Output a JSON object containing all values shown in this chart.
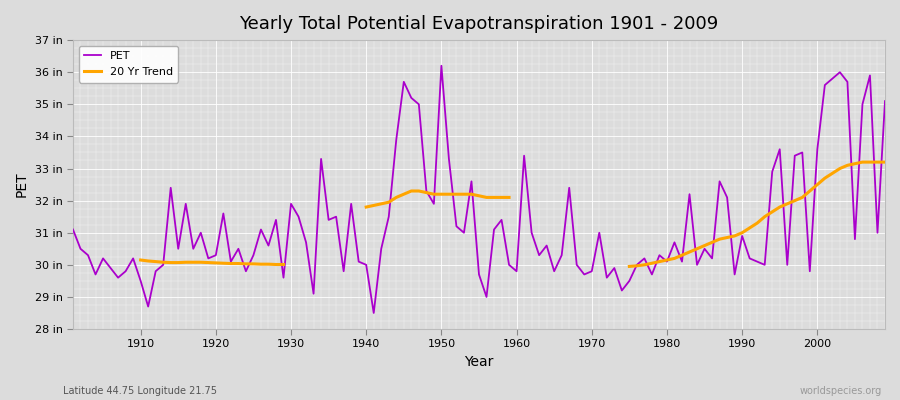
{
  "title": "Yearly Total Potential Evapotranspiration 1901 - 2009",
  "xlabel": "Year",
  "ylabel": "PET",
  "bottom_left_label": "Latitude 44.75 Longitude 21.75",
  "bottom_right_label": "worldspecies.org",
  "pet_color": "#AA00CC",
  "trend_color": "#FFA500",
  "bg_color": "#DCDCDC",
  "ylim_min": 28,
  "ylim_max": 37,
  "ytick_values": [
    28,
    29,
    30,
    31,
    32,
    33,
    34,
    35,
    36,
    37
  ],
  "ytick_labels": [
    "28 in",
    "29 in",
    "30 in",
    "31 in",
    "32 in",
    "33 in",
    "34 in",
    "35 in",
    "36 in",
    "37 in"
  ],
  "xtick_values": [
    1910,
    1920,
    1930,
    1940,
    1950,
    1960,
    1970,
    1980,
    1990,
    2000
  ],
  "years": [
    1901,
    1902,
    1903,
    1904,
    1905,
    1906,
    1907,
    1908,
    1909,
    1910,
    1911,
    1912,
    1913,
    1914,
    1915,
    1916,
    1917,
    1918,
    1919,
    1920,
    1921,
    1922,
    1923,
    1924,
    1925,
    1926,
    1927,
    1928,
    1929,
    1930,
    1931,
    1932,
    1933,
    1934,
    1935,
    1936,
    1937,
    1938,
    1939,
    1940,
    1941,
    1942,
    1943,
    1944,
    1945,
    1946,
    1947,
    1948,
    1949,
    1950,
    1951,
    1952,
    1953,
    1954,
    1955,
    1956,
    1957,
    1958,
    1959,
    1960,
    1961,
    1962,
    1963,
    1964,
    1965,
    1966,
    1967,
    1968,
    1969,
    1970,
    1971,
    1972,
    1973,
    1974,
    1975,
    1976,
    1977,
    1978,
    1979,
    1980,
    1981,
    1982,
    1983,
    1984,
    1985,
    1986,
    1987,
    1988,
    1989,
    1990,
    1991,
    1992,
    1993,
    1994,
    1995,
    1996,
    1997,
    1998,
    1999,
    2000,
    2001,
    2002,
    2003,
    2004,
    2005,
    2006,
    2007,
    2008,
    2009
  ],
  "pet_values": [
    31.1,
    30.5,
    30.3,
    29.7,
    30.2,
    29.9,
    29.6,
    29.8,
    30.2,
    29.5,
    28.7,
    29.8,
    30.0,
    32.4,
    30.5,
    31.9,
    30.5,
    31.0,
    30.2,
    30.3,
    31.6,
    30.1,
    30.5,
    29.8,
    30.3,
    31.1,
    30.6,
    31.4,
    29.6,
    31.9,
    31.5,
    30.7,
    29.1,
    33.3,
    31.4,
    31.5,
    29.8,
    31.9,
    30.1,
    30.0,
    28.5,
    30.5,
    31.5,
    33.9,
    35.7,
    35.2,
    35.0,
    32.3,
    31.9,
    36.2,
    33.3,
    31.2,
    31.0,
    32.6,
    29.7,
    29.0,
    31.1,
    31.4,
    30.0,
    29.8,
    33.4,
    31.0,
    30.3,
    30.6,
    29.8,
    30.3,
    32.4,
    30.0,
    29.7,
    29.8,
    31.0,
    29.6,
    29.9,
    29.2,
    29.5,
    30.0,
    30.2,
    29.7,
    30.3,
    30.1,
    30.7,
    30.1,
    32.2,
    30.0,
    30.5,
    30.2,
    32.6,
    32.1,
    29.7,
    30.9,
    30.2,
    30.1,
    30.0,
    32.9,
    33.6,
    30.0,
    33.4,
    33.5,
    29.8,
    33.6,
    35.6,
    35.8,
    36.0,
    35.7,
    30.8,
    35.0,
    35.9,
    31.0,
    35.1
  ],
  "trend_segments": [
    {
      "years": [
        1910,
        1911,
        1912,
        1913,
        1914,
        1915,
        1916,
        1917,
        1918,
        1919,
        1920,
        1921,
        1922,
        1923,
        1924,
        1925,
        1926,
        1927,
        1928,
        1929
      ],
      "values": [
        30.15,
        30.12,
        30.1,
        30.08,
        30.07,
        30.07,
        30.08,
        30.08,
        30.08,
        30.07,
        30.06,
        30.05,
        30.04,
        30.04,
        30.03,
        30.03,
        30.02,
        30.02,
        30.01,
        30.01
      ]
    },
    {
      "years": [
        1940,
        1941,
        1942,
        1943,
        1944,
        1945,
        1946,
        1947,
        1948,
        1949,
        1950,
        1951,
        1952,
        1953,
        1954,
        1955,
        1956,
        1957,
        1958,
        1959
      ],
      "values": [
        31.8,
        31.85,
        31.9,
        31.95,
        32.1,
        32.2,
        32.3,
        32.3,
        32.25,
        32.2,
        32.2,
        32.2,
        32.2,
        32.2,
        32.2,
        32.15,
        32.1,
        32.1,
        32.1,
        32.1
      ]
    },
    {
      "years": [
        1975,
        1976,
        1977,
        1978,
        1979,
        1980,
        1981,
        1982,
        1983,
        1984,
        1985,
        1986,
        1987,
        1988,
        1989,
        1990,
        1991,
        1992,
        1993,
        1994,
        1995,
        1996,
        1997,
        1998,
        1999,
        2000,
        2001,
        2002,
        2003,
        2004,
        2005,
        2006,
        2007,
        2008,
        2009
      ],
      "values": [
        29.95,
        29.97,
        30.0,
        30.05,
        30.1,
        30.15,
        30.2,
        30.3,
        30.4,
        30.5,
        30.6,
        30.7,
        30.8,
        30.85,
        30.9,
        31.0,
        31.15,
        31.3,
        31.5,
        31.65,
        31.8,
        31.9,
        32.0,
        32.1,
        32.3,
        32.5,
        32.7,
        32.85,
        33.0,
        33.1,
        33.15,
        33.2,
        33.2,
        33.2,
        33.2
      ]
    }
  ]
}
